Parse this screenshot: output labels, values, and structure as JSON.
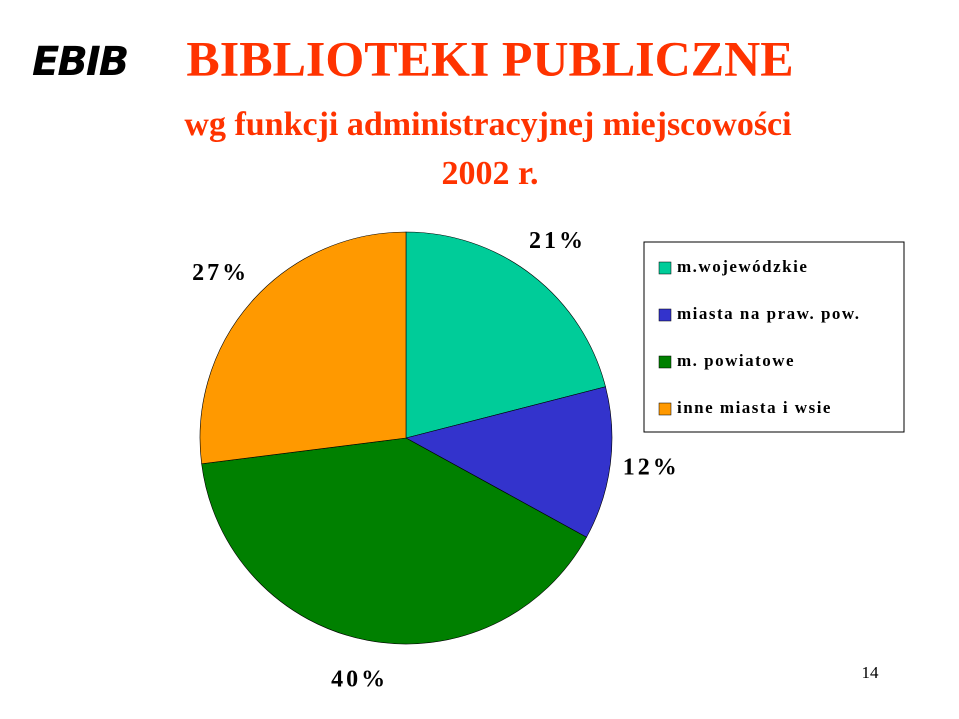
{
  "logo": "EBIB",
  "page_number": "14",
  "chart_data": {
    "type": "pie",
    "title": "BIBLIOTEKI PUBLICZNE",
    "subtitle": "wg funkcji administracyjnej miejscowości",
    "subtitle2": "2002 r.",
    "categories": [
      "m.wojewódzkie",
      "miasta na praw. pow.",
      "m. powiatowe",
      "inne miasta i wsie"
    ],
    "values": [
      21,
      12,
      40,
      27
    ],
    "value_labels": [
      "21%",
      "12%",
      "40%",
      "27%"
    ],
    "colors": [
      "#00cc99",
      "#3333cc",
      "#008000",
      "#ff9900"
    ]
  }
}
